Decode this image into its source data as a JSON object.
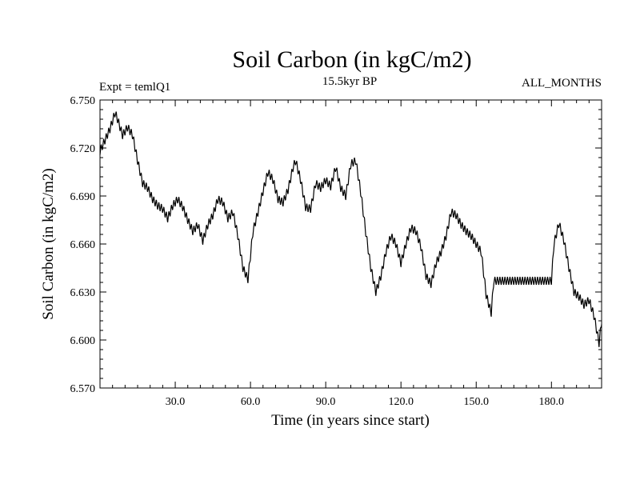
{
  "header": {
    "title": "Soil Carbon (in kgC/m2)",
    "left_label": "Expt = temlQ1",
    "center_label": "15.5kyr BP",
    "right_label": "ALL_MONTHS"
  },
  "chart_data": {
    "type": "line",
    "title": "Soil Carbon (in kgC/m2)",
    "xlabel": "Time (in years since start)",
    "ylabel": "Soil Carbon (in kgC/m2)",
    "xlim": [
      0,
      200
    ],
    "ylim": [
      6.57,
      6.75
    ],
    "x_ticks": [
      30,
      60,
      90,
      120,
      150,
      180
    ],
    "x_tick_labels": [
      "30.0",
      "60.0",
      "90.0",
      "120.0",
      "150.0",
      "180.0"
    ],
    "y_ticks": [
      6.57,
      6.6,
      6.63,
      6.66,
      6.69,
      6.72,
      6.75
    ],
    "y_tick_labels": [
      "6.570",
      "6.600",
      "6.630",
      "6.660",
      "6.690",
      "6.720",
      "6.750"
    ],
    "grid": false,
    "series": [
      {
        "name": "Soil Carbon",
        "seasonal_amplitude": 0.0045,
        "x": [
          0,
          2,
          4,
          6,
          7,
          9,
          11,
          13,
          15,
          17,
          19,
          21,
          23,
          25,
          27,
          29,
          31,
          33,
          35,
          37,
          39,
          41,
          43,
          45,
          47,
          49,
          51,
          53,
          55,
          57,
          59,
          61,
          63,
          65,
          67,
          69,
          71,
          73,
          75,
          77,
          78,
          80,
          82,
          84,
          86,
          88,
          90,
          92,
          94,
          96,
          98,
          100,
          102,
          104,
          106,
          108,
          110,
          112,
          114,
          116,
          118,
          120,
          122,
          124,
          126,
          128,
          130,
          132,
          134,
          136,
          138,
          140,
          142,
          144,
          146,
          148,
          150,
          152,
          154,
          156,
          157,
          180,
          181,
          183,
          185,
          187,
          189,
          191,
          193,
          195,
          197,
          199,
          200
        ],
        "values": [
          6.718,
          6.725,
          6.732,
          6.742,
          6.738,
          6.728,
          6.733,
          6.728,
          6.712,
          6.698,
          6.695,
          6.688,
          6.684,
          6.682,
          6.676,
          6.684,
          6.688,
          6.683,
          6.675,
          6.668,
          6.672,
          6.662,
          6.672,
          6.678,
          6.688,
          6.686,
          6.676,
          6.68,
          6.665,
          6.645,
          6.638,
          6.668,
          6.68,
          6.693,
          6.705,
          6.7,
          6.688,
          6.686,
          6.694,
          6.708,
          6.712,
          6.7,
          6.683,
          6.682,
          6.698,
          6.695,
          6.7,
          6.696,
          6.708,
          6.695,
          6.69,
          6.71,
          6.712,
          6.692,
          6.667,
          6.645,
          6.63,
          6.64,
          6.655,
          6.665,
          6.66,
          6.648,
          6.66,
          6.67,
          6.668,
          6.658,
          6.64,
          6.635,
          6.648,
          6.655,
          6.665,
          6.68,
          6.678,
          6.672,
          6.668,
          6.665,
          6.66,
          6.655,
          6.628,
          6.617,
          6.637,
          6.637,
          6.66,
          6.673,
          6.662,
          6.645,
          6.63,
          6.627,
          6.622,
          6.625,
          6.615,
          6.598,
          6.612
        ]
      }
    ]
  }
}
